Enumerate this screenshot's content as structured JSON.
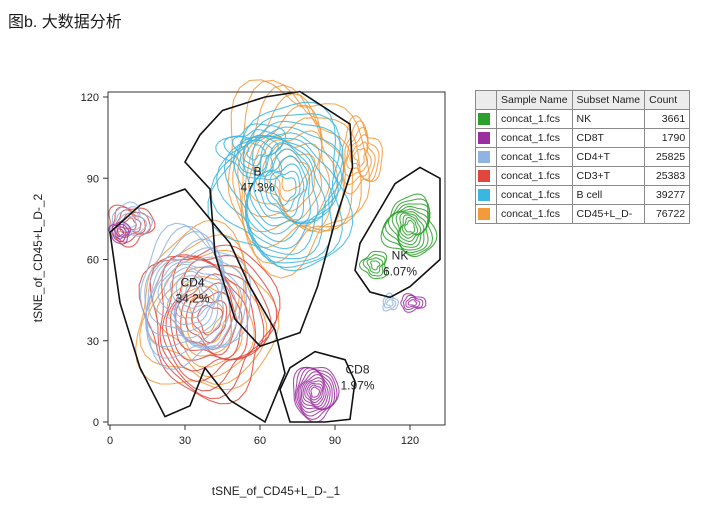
{
  "figure": {
    "title": "图b. 大数据分析"
  },
  "chart_data": {
    "type": "scatter",
    "subtype": "tSNE contour plot with gates",
    "xlabel": "tSNE_of_CD45+L_D-_1",
    "ylabel": "tSNE_of_CD45+L_D-_2",
    "xlim": [
      0,
      130
    ],
    "ylim": [
      0,
      120
    ],
    "xticks": [
      0,
      30,
      60,
      90,
      120
    ],
    "yticks": [
      0,
      30,
      60,
      90,
      120
    ],
    "grid": false,
    "gates": [
      {
        "name": "B",
        "percent": "47.3%"
      },
      {
        "name": "CD4",
        "percent": "34.2%"
      },
      {
        "name": "NK",
        "percent": "6.07%"
      },
      {
        "name": "CD8",
        "percent": "1.97%"
      }
    ],
    "populations": [
      {
        "name": "NK",
        "color": "#2ca02c",
        "center": [
          120,
          70
        ]
      },
      {
        "name": "CD8T",
        "color": "#9b2fa0",
        "center": [
          83,
          13
        ]
      },
      {
        "name": "CD4+T",
        "color": "#8fb3e3",
        "center": [
          35,
          42
        ]
      },
      {
        "name": "CD3+T",
        "color": "#e0463e",
        "center": [
          38,
          40
        ]
      },
      {
        "name": "B cell",
        "color": "#3ab6e0",
        "center": [
          72,
          85
        ]
      },
      {
        "name": "CD45+L_D-",
        "color": "#f29a3c",
        "center": [
          80,
          85
        ]
      }
    ]
  },
  "legend": {
    "headers": [
      "Sample Name",
      "Subset Name",
      "Count"
    ],
    "rows": [
      {
        "color": "#2ca02c",
        "sample": "concat_1.fcs",
        "subset": "NK",
        "count": "3661"
      },
      {
        "color": "#9b2fa0",
        "sample": "concat_1.fcs",
        "subset": "CD8T",
        "count": "1790"
      },
      {
        "color": "#8fb3e3",
        "sample": "concat_1.fcs",
        "subset": "CD4+T",
        "count": "25825"
      },
      {
        "color": "#e0463e",
        "sample": "concat_1.fcs",
        "subset": "CD3+T",
        "count": "25383"
      },
      {
        "color": "#3ab6e0",
        "sample": "concat_1.fcs",
        "subset": "B cell",
        "count": "39277"
      },
      {
        "color": "#f29a3c",
        "sample": "concat_1.fcs",
        "subset": "CD45+L_D-",
        "count": "76722"
      }
    ]
  }
}
